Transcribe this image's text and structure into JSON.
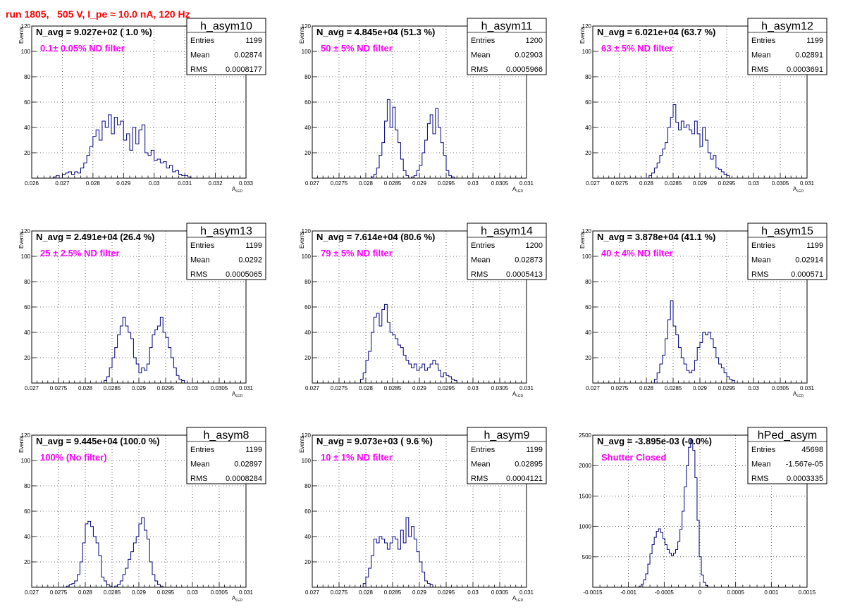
{
  "header": {
    "title": "run 1805,   505 V, I_pe ≈ 10.0 nA, 120 Hz"
  },
  "chart_data": [
    {
      "type": "bar",
      "title": "h_asym10",
      "navg": "N_avg = 9.027e+02 ( 1.0 %)",
      "annotation": "0.1± 0.05% ND filter",
      "stats": [
        {
          "k": "Entries",
          "v": "1199"
        },
        {
          "k": "Mean",
          "v": "0.02874"
        },
        {
          "k": "RMS",
          "v": "0.0008177"
        }
      ],
      "xlabel": "A",
      "xlabel_sub": "LED",
      "ylabel": "Events",
      "xlim": [
        0.026,
        0.033
      ],
      "ylim": [
        0,
        120
      ],
      "xticks": [
        "0.026",
        "0.027",
        "0.028",
        "0.029",
        "0.03",
        "0.031",
        "0.032",
        "0.033"
      ],
      "xtick_values": [
        0.026,
        0.027,
        0.028,
        0.029,
        0.03,
        0.031,
        0.032,
        0.033
      ],
      "yticks": [
        "20",
        "40",
        "60",
        "80",
        "100",
        "120"
      ],
      "ytick_values": [
        20,
        40,
        60,
        80,
        100,
        120
      ],
      "bin_start": 0.0267,
      "bin_width": 0.0001,
      "values": [
        1,
        2,
        0,
        3,
        4,
        5,
        3,
        5,
        4,
        8,
        12,
        18,
        25,
        33,
        38,
        30,
        45,
        40,
        50,
        35,
        48,
        42,
        45,
        30,
        35,
        22,
        40,
        27,
        38,
        42,
        20,
        18,
        22,
        14,
        15,
        12,
        13,
        8,
        10,
        5,
        6,
        3,
        2,
        2,
        1
      ]
    },
    {
      "type": "bar",
      "title": "h_asym11",
      "navg": "N_avg = 4.845e+04 (51.3 %)",
      "annotation": "50 ± 5% ND filter",
      "stats": [
        {
          "k": "Entries",
          "v": "1200"
        },
        {
          "k": "Mean",
          "v": "0.02903"
        },
        {
          "k": "RMS",
          "v": "0.0005966"
        }
      ],
      "xlabel": "A",
      "xlabel_sub": "LED",
      "ylabel": "Events",
      "xlim": [
        0.027,
        0.031
      ],
      "ylim": [
        0,
        120
      ],
      "xticks": [
        "0.027",
        "0.0275",
        "0.028",
        "0.0285",
        "0.029",
        "0.0295",
        "0.03",
        "0.0305",
        "0.031"
      ],
      "xtick_values": [
        0.027,
        0.0275,
        0.028,
        0.0285,
        0.029,
        0.0295,
        0.03,
        0.0305,
        0.031
      ],
      "yticks": [
        "20",
        "40",
        "60",
        "80",
        "100",
        "120"
      ],
      "ytick_values": [
        20,
        40,
        60,
        80,
        100,
        120
      ],
      "bin_start": 0.0281,
      "bin_width": 5e-05,
      "values": [
        1,
        3,
        8,
        18,
        28,
        45,
        62,
        40,
        56,
        38,
        28,
        15,
        6,
        2,
        0,
        1,
        2,
        6,
        10,
        20,
        30,
        43,
        50,
        35,
        55,
        40,
        28,
        18,
        6,
        2,
        1
      ]
    },
    {
      "type": "bar",
      "title": "h_asym12",
      "navg": "N_avg = 6.021e+04 (63.7 %)",
      "annotation": "63 ± 5% ND filter",
      "stats": [
        {
          "k": "Entries",
          "v": "1199"
        },
        {
          "k": "Mean",
          "v": "0.02891"
        },
        {
          "k": "RMS",
          "v": "0.0003691"
        }
      ],
      "xlabel": "A",
      "xlabel_sub": "LED",
      "ylabel": "Events",
      "xlim": [
        0.027,
        0.031
      ],
      "ylim": [
        0,
        120
      ],
      "xticks": [
        "0.027",
        "0.0275",
        "0.028",
        "0.0285",
        "0.029",
        "0.0295",
        "0.03",
        "0.0305",
        "0.031"
      ],
      "xtick_values": [
        0.027,
        0.0275,
        0.028,
        0.0285,
        0.029,
        0.0295,
        0.03,
        0.0305,
        0.031
      ],
      "yticks": [
        "20",
        "40",
        "60",
        "80",
        "100",
        "120"
      ],
      "ytick_values": [
        20,
        40,
        60,
        80,
        100,
        120
      ],
      "bin_start": 0.02805,
      "bin_width": 5e-05,
      "values": [
        2,
        4,
        8,
        12,
        18,
        23,
        28,
        40,
        48,
        58,
        44,
        38,
        45,
        40,
        42,
        38,
        35,
        45,
        35,
        25,
        40,
        30,
        20,
        15,
        18,
        8,
        7,
        5,
        3,
        2
      ]
    },
    {
      "type": "bar",
      "title": "h_asym13",
      "navg": "N_avg = 2.491e+04 (26.4 %)",
      "annotation": "25 ± 2.5% ND filter",
      "stats": [
        {
          "k": "Entries",
          "v": "1199"
        },
        {
          "k": "Mean",
          "v": "0.0292"
        },
        {
          "k": "RMS",
          "v": "0.0005065"
        }
      ],
      "xlabel": "A",
      "xlabel_sub": "LED",
      "ylabel": "Events",
      "xlim": [
        0.027,
        0.031
      ],
      "ylim": [
        0,
        120
      ],
      "xticks": [
        "0.027",
        "0.0275",
        "0.028",
        "0.0285",
        "0.029",
        "0.0295",
        "0.03",
        "0.0305",
        "0.031"
      ],
      "xtick_values": [
        0.027,
        0.0275,
        0.028,
        0.0285,
        0.029,
        0.0295,
        0.03,
        0.0305,
        0.031
      ],
      "yticks": [
        "20",
        "40",
        "60",
        "80",
        "100",
        "120"
      ],
      "ytick_values": [
        20,
        40,
        60,
        80,
        100,
        120
      ],
      "bin_start": 0.02835,
      "bin_width": 5e-05,
      "values": [
        2,
        5,
        12,
        20,
        28,
        38,
        45,
        52,
        45,
        40,
        35,
        20,
        15,
        8,
        12,
        10,
        15,
        28,
        38,
        42,
        45,
        52,
        40,
        36,
        28,
        20,
        12,
        6,
        3,
        2
      ]
    },
    {
      "type": "bar",
      "title": "h_asym14",
      "navg": "N_avg = 7.614e+04 (80.6 %)",
      "annotation": "79 ± 5% ND filter",
      "stats": [
        {
          "k": "Entries",
          "v": "1200"
        },
        {
          "k": "Mean",
          "v": "0.02873"
        },
        {
          "k": "RMS",
          "v": "0.0005413"
        }
      ],
      "xlabel": "A",
      "xlabel_sub": "LED",
      "ylabel": "Events",
      "xlim": [
        0.027,
        0.031
      ],
      "ylim": [
        0,
        120
      ],
      "xticks": [
        "0.027",
        "0.0275",
        "0.028",
        "0.0285",
        "0.029",
        "0.0295",
        "0.03",
        "0.0305",
        "0.031"
      ],
      "xtick_values": [
        0.027,
        0.0275,
        0.028,
        0.0285,
        0.029,
        0.0295,
        0.03,
        0.0305,
        0.031
      ],
      "yticks": [
        "20",
        "40",
        "60",
        "80",
        "100",
        "120"
      ],
      "ytick_values": [
        20,
        40,
        60,
        80,
        100,
        120
      ],
      "bin_start": 0.0279,
      "bin_width": 5e-05,
      "values": [
        3,
        8,
        18,
        25,
        40,
        52,
        55,
        45,
        58,
        62,
        48,
        40,
        38,
        35,
        30,
        28,
        22,
        18,
        15,
        12,
        15,
        10,
        12,
        15,
        10,
        12,
        15,
        18,
        15,
        10,
        5,
        8,
        6,
        5,
        3,
        2
      ]
    },
    {
      "type": "bar",
      "title": "h_asym15",
      "navg": "N_avg = 3.878e+04 (41.1 %)",
      "annotation": "40 ± 4% ND filter",
      "stats": [
        {
          "k": "Entries",
          "v": "1199"
        },
        {
          "k": "Mean",
          "v": "0.02914"
        },
        {
          "k": "RMS",
          "v": "0.000571"
        }
      ],
      "xlabel": "A",
      "xlabel_sub": "LED",
      "ylabel": "Events",
      "xlim": [
        0.027,
        0.031
      ],
      "ylim": [
        0,
        120
      ],
      "xticks": [
        "0.027",
        "0.0275",
        "0.028",
        "0.0285",
        "0.029",
        "0.0295",
        "0.03",
        "0.0305",
        "0.031"
      ],
      "xtick_values": [
        0.027,
        0.0275,
        0.028,
        0.0285,
        0.029,
        0.0295,
        0.03,
        0.0305,
        0.031
      ],
      "yticks": [
        "20",
        "40",
        "60",
        "80",
        "100",
        "120"
      ],
      "ytick_values": [
        20,
        40,
        60,
        80,
        100,
        120
      ],
      "bin_start": 0.02815,
      "bin_width": 5e-05,
      "values": [
        3,
        8,
        15,
        22,
        35,
        50,
        65,
        45,
        38,
        28,
        20,
        15,
        10,
        8,
        10,
        18,
        28,
        32,
        40,
        38,
        40,
        35,
        28,
        20,
        15,
        12,
        8,
        5,
        3,
        2
      ]
    },
    {
      "type": "bar",
      "title": "h_asym8",
      "navg": "N_avg = 9.445e+04 (100.0 %)",
      "annotation": "100% (No filter)",
      "stats": [
        {
          "k": "Entries",
          "v": "1199"
        },
        {
          "k": "Mean",
          "v": "0.02897"
        },
        {
          "k": "RMS",
          "v": "0.0008284"
        }
      ],
      "xlabel": "A",
      "xlabel_sub": "LED",
      "ylabel": "Events",
      "xlim": [
        0.027,
        0.031
      ],
      "ylim": [
        0,
        120
      ],
      "xticks": [
        "0.027",
        "0.0275",
        "0.028",
        "0.0285",
        "0.029",
        "0.0295",
        "0.03",
        "0.0305",
        "0.031"
      ],
      "xtick_values": [
        0.027,
        0.0275,
        0.028,
        0.0285,
        0.029,
        0.0295,
        0.03,
        0.0305,
        0.031
      ],
      "yticks": [
        "20",
        "40",
        "60",
        "80",
        "100",
        "120"
      ],
      "ytick_values": [
        20,
        40,
        60,
        80,
        100,
        120
      ],
      "bin_start": 0.02765,
      "bin_width": 5e-05,
      "values": [
        1,
        2,
        3,
        5,
        10,
        20,
        35,
        50,
        52,
        48,
        40,
        35,
        25,
        8,
        5,
        2,
        1,
        0,
        1,
        2,
        5,
        10,
        15,
        22,
        28,
        35,
        40,
        50,
        55,
        45,
        38,
        20,
        10,
        5,
        2,
        1
      ]
    },
    {
      "type": "bar",
      "title": "h_asym9",
      "navg": "N_avg = 9.073e+03 ( 9.6 %)",
      "annotation": "10 ± 1% ND filter",
      "stats": [
        {
          "k": "Entries",
          "v": "1199"
        },
        {
          "k": "Mean",
          "v": "0.02895"
        },
        {
          "k": "RMS",
          "v": "0.0004121"
        }
      ],
      "xlabel": "A",
      "xlabel_sub": "LED",
      "ylabel": "Events",
      "xlim": [
        0.027,
        0.031
      ],
      "ylim": [
        0,
        120
      ],
      "xticks": [
        "0.027",
        "0.0275",
        "0.028",
        "0.0285",
        "0.029",
        "0.0295",
        "0.03",
        "0.0305",
        "0.031"
      ],
      "xtick_values": [
        0.027,
        0.0275,
        0.028,
        0.0285,
        0.029,
        0.0295,
        0.03,
        0.0305,
        0.031
      ],
      "yticks": [
        "20",
        "40",
        "60",
        "80",
        "100",
        "120"
      ],
      "ytick_values": [
        20,
        40,
        60,
        80,
        100,
        120
      ],
      "bin_start": 0.02795,
      "bin_width": 5e-05,
      "values": [
        3,
        8,
        15,
        25,
        38,
        35,
        40,
        38,
        35,
        30,
        35,
        40,
        38,
        30,
        45,
        35,
        55,
        40,
        48,
        38,
        28,
        20,
        12,
        5,
        3,
        2
      ]
    },
    {
      "type": "bar",
      "title": "hPed_asym",
      "navg": "N_avg = -3.895e-03 (-0.0%)",
      "annotation": "Shutter Closed",
      "stats": [
        {
          "k": "Entries",
          "v": "45698"
        },
        {
          "k": "Mean",
          "v": "-1.567e-05"
        },
        {
          "k": "RMS",
          "v": "0.0003335"
        }
      ],
      "xlabel": "",
      "xlabel_sub": "",
      "ylabel": "",
      "xlim": [
        -0.0015,
        0.0015
      ],
      "ylim": [
        0,
        2500
      ],
      "xticks": [
        "-0.0015",
        "-0.001",
        "-0.0005",
        "0",
        "0.0005",
        "0.001",
        "0.0015"
      ],
      "xtick_values": [
        -0.0015,
        -0.001,
        -0.0005,
        0,
        0.0005,
        0.001,
        0.0015
      ],
      "yticks": [
        "500",
        "1000",
        "1500",
        "2000",
        "2500"
      ],
      "ytick_values": [
        500,
        1000,
        1500,
        2000,
        2500
      ],
      "bin_start": -0.00085,
      "bin_width": 3e-05,
      "values": [
        20,
        50,
        120,
        220,
        380,
        550,
        700,
        820,
        920,
        960,
        900,
        800,
        700,
        620,
        560,
        520,
        560,
        620,
        750,
        950,
        1250,
        1650,
        2000,
        2300,
        2420,
        2250,
        1800,
        1100,
        500,
        200,
        80,
        30
      ]
    }
  ]
}
